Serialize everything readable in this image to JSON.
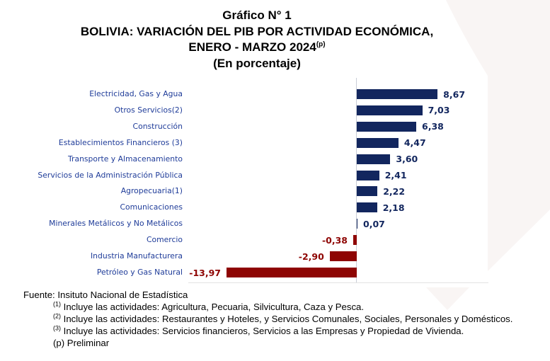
{
  "title": {
    "line1": "Gráfico N° 1",
    "line2": "BOLIVIA: VARIACIÓN DEL PIB POR ACTIVIDAD ECONÓMICA,",
    "line3": "ENERO - MARZO 2024",
    "line3_sup": "(p)",
    "line4": "(En porcentaje)"
  },
  "chart_data": {
    "type": "bar",
    "orientation": "horizontal",
    "title": "Gráfico N° 1 — BOLIVIA: VARIACIÓN DEL PIB POR ACTIVIDAD ECONÓMICA, ENERO - MARZO 2024(p)",
    "unit": "En porcentaje",
    "categories": [
      "Electricidad, Gas y Agua",
      "Otros Servicios(2)",
      "Construcción",
      "Establecimientos Financieros (3)",
      "Transporte y Almacenamiento",
      "Servicios de la Administración Pública",
      "Agropecuaria(1)",
      "Comunicaciones",
      "Minerales Metálicos y No Metálicos",
      "Comercio",
      "Industria Manufacturera",
      "Petróleo y Gas Natural"
    ],
    "values": [
      8.67,
      7.03,
      6.38,
      4.47,
      3.6,
      2.41,
      2.22,
      2.18,
      0.07,
      -0.38,
      -2.9,
      -13.97
    ],
    "value_labels": [
      "8,67",
      "7,03",
      "6,38",
      "4,47",
      "3,60",
      "2,41",
      "2,22",
      "2,18",
      "0,07",
      "-0,38",
      "-2,90",
      "-13,97"
    ],
    "xlim": [
      -15,
      10
    ],
    "grid": false,
    "legend": false,
    "colors": {
      "positive_bar": "#12265e",
      "negative_bar": "#8e0503",
      "category_label": "#1f3c99",
      "watermark": "#f9f5f4"
    }
  },
  "footnotes": {
    "fuente": "Fuente: Insituto Nacional de Estadística",
    "note1_sup": "(1)",
    "note1": " Incluye las actividades: Agricultura, Pecuaria, Silvicultura, Caza y Pesca.",
    "note2_sup": "(2)",
    "note2": " Incluye las actividades: Restaurantes y Hoteles, y Servicios Comunales, Sociales, Personales y Domésticos.",
    "note3_sup": "(3)",
    "note3": " Incluye las actividades: Servicios financieros, Servicios a las Empresas y Propiedad de Vivienda.",
    "notep": "(p) Preliminar"
  }
}
